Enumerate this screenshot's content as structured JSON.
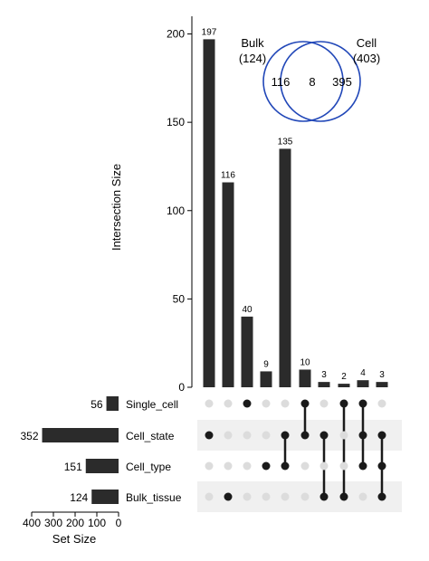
{
  "chart_data": [
    {
      "type": "bar",
      "role": "intersection-size",
      "ylabel": "Intersection Size",
      "ylim": [
        0,
        210
      ],
      "yticks": [
        0,
        50,
        100,
        150,
        200
      ],
      "values": [
        197,
        116,
        40,
        9,
        135,
        10,
        3,
        2,
        4,
        3
      ],
      "bar_color": "#2b2b2b"
    },
    {
      "type": "bar",
      "role": "set-size",
      "orientation": "horizontal",
      "xlabel": "Set Size",
      "xlim": [
        400,
        0
      ],
      "xticks": [
        400,
        300,
        200,
        100,
        0
      ],
      "sets": [
        {
          "name": "Single_cell",
          "size": 56
        },
        {
          "name": "Cell_state",
          "size": 352
        },
        {
          "name": "Cell_type",
          "size": 151
        },
        {
          "name": "Bulk_tissue",
          "size": 124
        }
      ],
      "bar_color": "#2b2b2b"
    },
    {
      "type": "matrix",
      "role": "intersection-membership",
      "rows": [
        "Single_cell",
        "Cell_state",
        "Cell_type",
        "Bulk_tissue"
      ],
      "columns": [
        [
          "Cell_state"
        ],
        [
          "Bulk_tissue"
        ],
        [
          "Single_cell"
        ],
        [
          "Cell_type"
        ],
        [
          "Cell_state",
          "Cell_type"
        ],
        [
          "Single_cell",
          "Cell_state"
        ],
        [
          "Cell_state",
          "Bulk_tissue"
        ],
        [
          "Single_cell",
          "Bulk_tissue"
        ],
        [
          "Single_cell",
          "Cell_state",
          "Cell_type"
        ],
        [
          "Cell_state",
          "Cell_type",
          "Bulk_tissue"
        ]
      ],
      "active_color": "#1a1a1a",
      "inactive_color": "#dcdcdc",
      "stripe_color": "#f0f0f0"
    },
    {
      "type": "venn",
      "left": {
        "name": "Bulk",
        "total_label": "(124)",
        "only": 116
      },
      "right": {
        "name": "Cell",
        "total_label": "(403)",
        "only": 395
      },
      "overlap": 8,
      "circle_color": "#2147b8"
    }
  ]
}
